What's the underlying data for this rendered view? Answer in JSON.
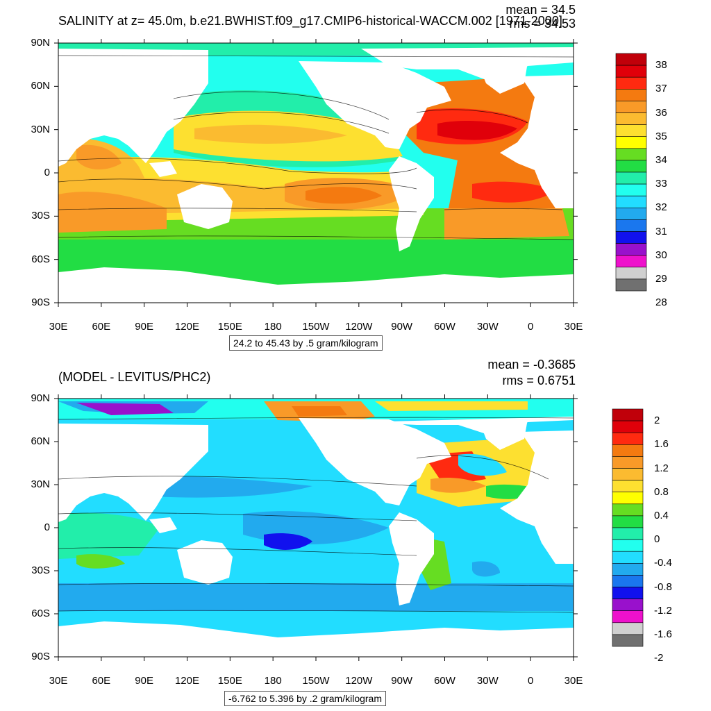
{
  "panel1": {
    "title": "SALINITY at z=  45.0m, b.e21.BWHIST.f09_g17.CMIP6-historical-WACCM.002 [1971-2000]",
    "mean": "mean = 34.5",
    "rms": "rms = 34.53",
    "info": "24.2 to 45.43 by .5 gram/kilogram",
    "colorbar": {
      "labels": [
        "38",
        "37",
        "36",
        "35",
        "34",
        "33",
        "32",
        "31",
        "30",
        "29",
        "28"
      ],
      "colors": [
        "#c0000a",
        "#e0000a",
        "#ff2a10",
        "#f47a10",
        "#f99a28",
        "#fbbb30",
        "#fde030",
        "#ffff00",
        "#66dd22",
        "#22dd44",
        "#22eeaa",
        "#22ffee",
        "#22ddff",
        "#22aaee",
        "#1a77ee",
        "#1111ee",
        "#9911cc",
        "#ee11cc",
        "#d0d0d0",
        "#707070"
      ]
    }
  },
  "panel2": {
    "title": "(MODEL - LEVITUS/PHC2)",
    "mean": "mean = -0.3685",
    "rms": "rms = 0.6751",
    "info": "-6.762 to 5.396 by .2 gram/kilogram",
    "colorbar": {
      "labels": [
        "2",
        "1.6",
        "1.2",
        "0.8",
        "0.4",
        "0",
        "-0.4",
        "-0.8",
        "-1.2",
        "-1.6",
        "-2"
      ],
      "colors": [
        "#c0000a",
        "#e0000a",
        "#ff2a10",
        "#f47a10",
        "#f99a28",
        "#fbbb30",
        "#fde030",
        "#ffff00",
        "#66dd22",
        "#22dd44",
        "#22eeaa",
        "#22ffee",
        "#22ddff",
        "#22aaee",
        "#1a77ee",
        "#1111ee",
        "#9911cc",
        "#ee11cc",
        "#d0d0d0",
        "#707070"
      ]
    }
  },
  "axes": {
    "x_ticks": [
      "30E",
      "60E",
      "90E",
      "120E",
      "150E",
      "180",
      "150W",
      "120W",
      "90W",
      "60W",
      "30W",
      "0",
      "30E"
    ],
    "y_ticks": [
      "90N",
      "60N",
      "30N",
      "0",
      "30S",
      "60S",
      "90S"
    ]
  }
}
